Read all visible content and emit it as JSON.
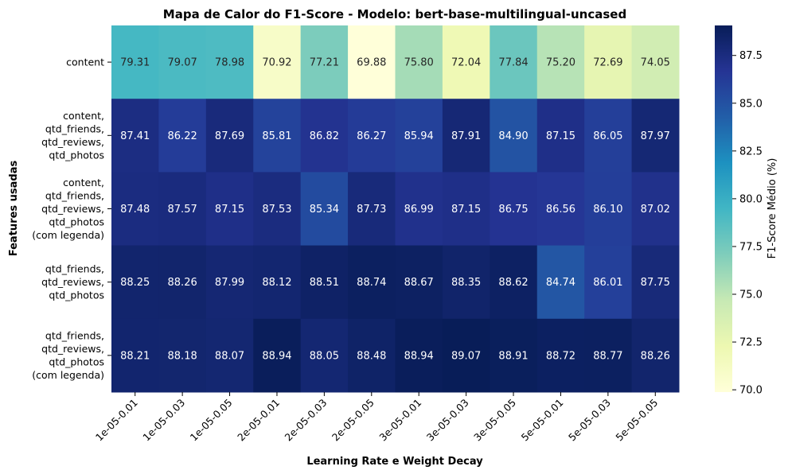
{
  "chart_data": {
    "type": "heatmap",
    "title": "Mapa de Calor do F1-Score - Modelo: bert-base-multilingual-uncased",
    "xlabel": "Learning Rate e Weight Decay",
    "ylabel": "Features usadas",
    "colorbar_label": "F1-Score Médio (%)",
    "colormap": "YlGnBu",
    "vmin": 69.88,
    "vmax": 89.07,
    "colorbar_ticks": [
      "70.0",
      "72.5",
      "75.0",
      "77.5",
      "80.0",
      "82.5",
      "85.0",
      "87.5"
    ],
    "x_categories": [
      "1e-05-0.01",
      "1e-05-0.03",
      "1e-05-0.05",
      "2e-05-0.01",
      "2e-05-0.03",
      "2e-05-0.05",
      "3e-05-0.01",
      "3e-05-0.03",
      "3e-05-0.05",
      "5e-05-0.01",
      "5e-05-0.03",
      "5e-05-0.05"
    ],
    "y_categories": [
      [
        "content"
      ],
      [
        "content,",
        "qtd_friends,",
        "qtd_reviews,",
        "qtd_photos"
      ],
      [
        "content,",
        "qtd_friends,",
        "qtd_reviews,",
        "qtd_photos",
        "(com legenda)"
      ],
      [
        "qtd_friends,",
        "qtd_reviews,",
        "qtd_photos"
      ],
      [
        "qtd_friends,",
        "qtd_reviews,",
        "qtd_photos",
        "(com legenda)"
      ]
    ],
    "values": [
      [
        79.31,
        79.07,
        78.98,
        70.92,
        77.21,
        69.88,
        75.8,
        72.04,
        77.84,
        75.2,
        72.69,
        74.05
      ],
      [
        87.41,
        86.22,
        87.69,
        85.81,
        86.82,
        86.27,
        85.94,
        87.91,
        84.9,
        87.15,
        86.05,
        87.97
      ],
      [
        87.48,
        87.57,
        87.15,
        87.53,
        85.34,
        87.73,
        86.99,
        87.15,
        86.75,
        86.56,
        86.1,
        87.02
      ],
      [
        88.25,
        88.26,
        87.99,
        88.12,
        88.51,
        88.74,
        88.67,
        88.35,
        88.62,
        84.74,
        86.01,
        87.75
      ],
      [
        88.21,
        88.18,
        88.07,
        88.94,
        88.05,
        88.48,
        88.94,
        89.07,
        88.91,
        88.72,
        88.77,
        88.26
      ]
    ]
  }
}
